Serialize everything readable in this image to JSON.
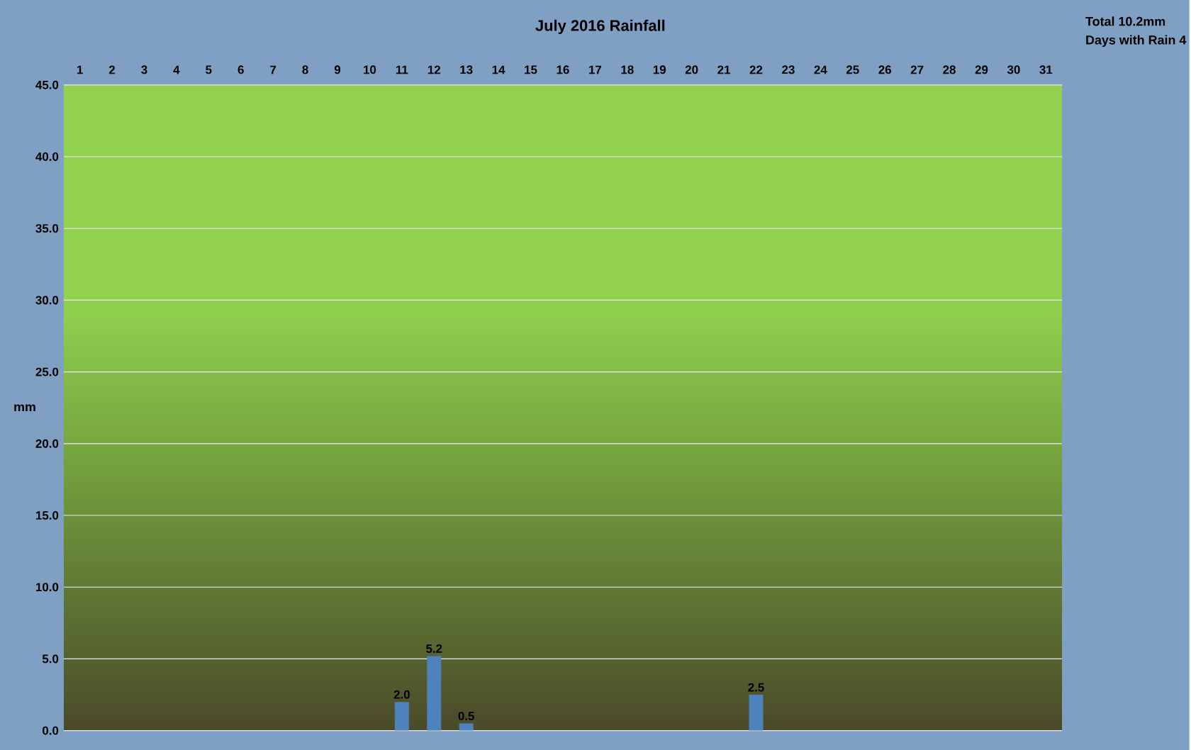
{
  "chart_data": {
    "type": "bar",
    "title": "July 2016 Rainfall",
    "ylabel": "mm",
    "annotations": [
      "Total 10.2mm",
      "Days with Rain 4"
    ],
    "categories": [
      "1",
      "2",
      "3",
      "4",
      "5",
      "6",
      "7",
      "8",
      "9",
      "10",
      "11",
      "12",
      "13",
      "14",
      "15",
      "16",
      "17",
      "18",
      "19",
      "20",
      "21",
      "22",
      "23",
      "24",
      "25",
      "26",
      "27",
      "28",
      "29",
      "30",
      "31"
    ],
    "values": [
      0,
      0,
      0,
      0,
      0,
      0,
      0,
      0,
      0,
      0,
      2.0,
      5.2,
      0.5,
      0,
      0,
      0,
      0,
      0,
      0,
      0,
      0,
      2.5,
      0,
      0,
      0,
      0,
      0,
      0,
      0,
      0,
      0
    ],
    "value_labels": [
      null,
      null,
      null,
      null,
      null,
      null,
      null,
      null,
      null,
      null,
      "2.0",
      "5.2",
      "0.5",
      null,
      null,
      null,
      null,
      null,
      null,
      null,
      null,
      "2.5",
      null,
      null,
      null,
      null,
      null,
      null,
      null,
      null,
      null
    ],
    "color": "#4f81bd",
    "ylim": [
      0,
      45
    ],
    "yticks": [
      {
        "value": 0,
        "label": "0.0"
      },
      {
        "value": 5,
        "label": "5.0"
      },
      {
        "value": 10,
        "label": "10.0"
      },
      {
        "value": 15,
        "label": "15.0"
      },
      {
        "value": 20,
        "label": "20.0"
      },
      {
        "value": 25,
        "label": "25.0"
      },
      {
        "value": 30,
        "label": "30.0"
      },
      {
        "value": 35,
        "label": "35.0"
      },
      {
        "value": 40,
        "label": "40.0"
      },
      {
        "value": 45,
        "label": "45.0"
      }
    ],
    "grid": "y"
  }
}
